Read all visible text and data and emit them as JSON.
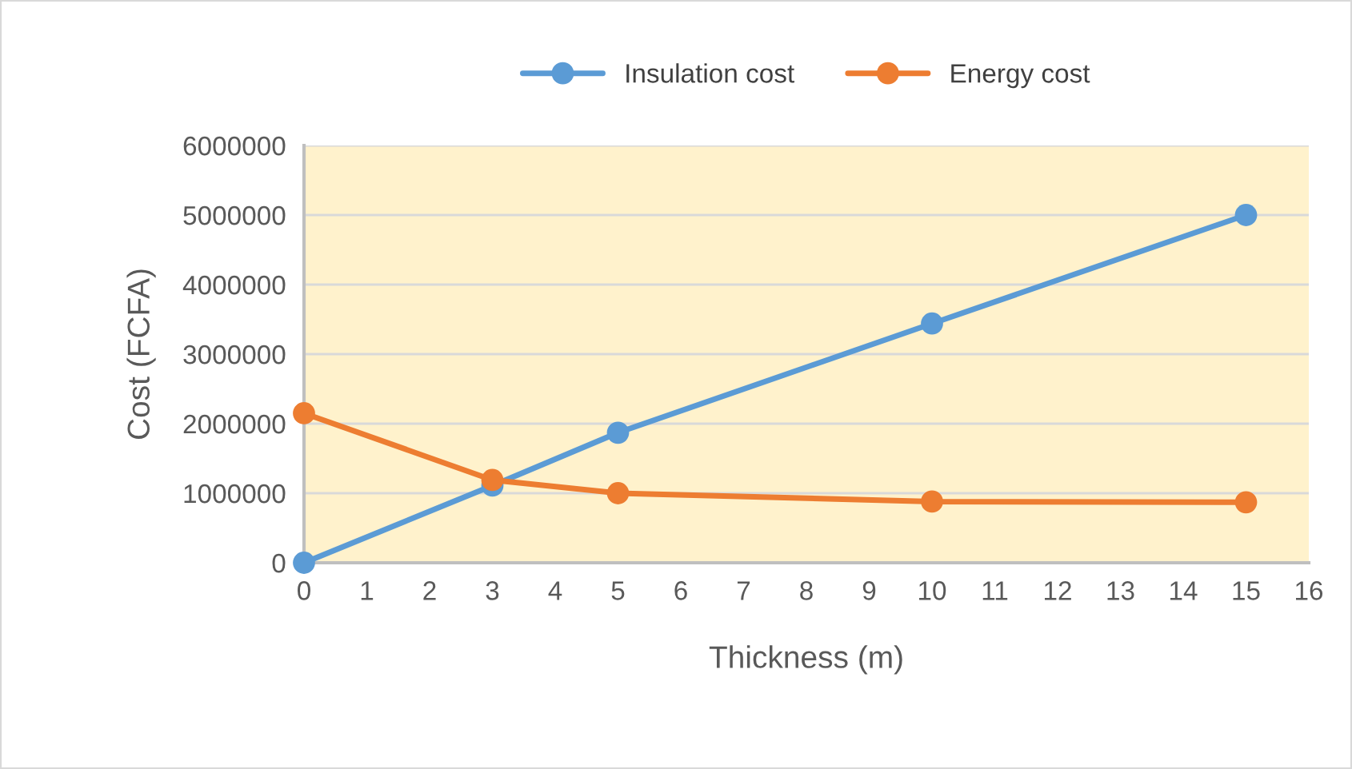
{
  "chart_data": {
    "type": "line",
    "xlabel": "Thickness (m)",
    "ylabel": "Cost (FCFA)",
    "x": [
      0,
      3,
      5,
      10,
      15
    ],
    "series": [
      {
        "name": "Insulation cost",
        "color": "#5b9bd5",
        "values": [
          0,
          1110000,
          1870000,
          3440000,
          5000000
        ]
      },
      {
        "name": "Energy cost",
        "color": "#ed7d31",
        "values": [
          2150000,
          1190000,
          1000000,
          880000,
          870000
        ]
      }
    ],
    "xlim": [
      0,
      16
    ],
    "xticks": [
      0,
      1,
      2,
      3,
      4,
      5,
      6,
      7,
      8,
      9,
      10,
      11,
      12,
      13,
      14,
      15,
      16
    ],
    "ylim": [
      0,
      6000000
    ],
    "yticks": [
      0,
      1000000,
      2000000,
      3000000,
      4000000,
      5000000,
      6000000
    ],
    "grid": "y",
    "legend": "top",
    "marker": "circle",
    "line_style": "solid"
  }
}
